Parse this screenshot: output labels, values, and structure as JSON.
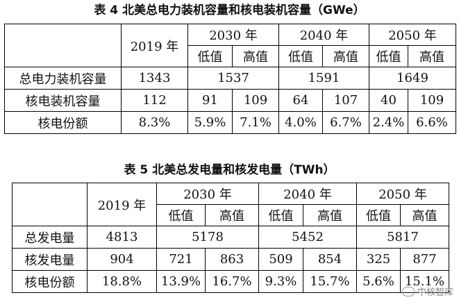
{
  "table4": {
    "title": "表 4  北美总电力装机容量和核电装机容量（GWe）",
    "year_2019": "2019 年",
    "y2030": "2030 年",
    "y2040": "2040 年",
    "y2050": "2050 年",
    "low": "低值",
    "high": "高值",
    "rows": [
      {
        "label": "总电力装机容量",
        "v2019": "1343",
        "v2030": "1537",
        "v2040": "1591",
        "v2050": "1649"
      },
      {
        "label": "核电装机容量",
        "v2019": "112",
        "c": [
          "91",
          "109",
          "64",
          "107",
          "40",
          "109"
        ]
      },
      {
        "label": "核电份额",
        "v2019": "8.3%",
        "c": [
          "5.9%",
          "7.1%",
          "4.0%",
          "6.7%",
          "2.4%",
          "6.6%"
        ]
      }
    ]
  },
  "table5": {
    "title": "表 5  北美总发电量和核发电量（TWh）",
    "year_2019": "2019 年",
    "y2030": "2030 年",
    "y2040": "2040 年",
    "y2050": "2050 年",
    "low": "低值",
    "high": "高值",
    "rows": [
      {
        "label": "总发电量",
        "v2019": "4813",
        "v2030": "5178",
        "v2040": "5452",
        "v2050": "5817"
      },
      {
        "label": "核发电量",
        "v2019": "904",
        "c": [
          "721",
          "863",
          "509",
          "854",
          "325",
          "877"
        ]
      },
      {
        "label": "核电份额",
        "v2019": "18.8%",
        "c": [
          "13.9%",
          "16.7%",
          "9.3%",
          "15.7%",
          "5.6%",
          "15.1%"
        ]
      }
    ]
  },
  "watermark": {
    "text": "中核智库",
    "icon": "wechat-icon"
  }
}
